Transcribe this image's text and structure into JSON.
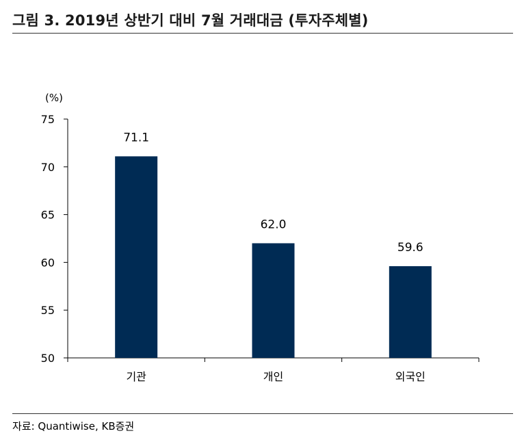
{
  "title": "그림 3. 2019년 상반기 대비 7월 거래대금 (투자주체별)",
  "unit_label": "(%)",
  "source": "자료: Quantiwise, KB증권",
  "colors": {
    "bar": "#002b54",
    "axis": "#000000"
  },
  "chart_data": {
    "type": "bar",
    "title": "",
    "xlabel": "",
    "ylabel": "(%)",
    "categories": [
      "기관",
      "개인",
      "외국인"
    ],
    "values": [
      71.1,
      62.0,
      59.6
    ],
    "value_labels": [
      "71.1",
      "62.0",
      "59.6"
    ],
    "ylim": [
      50,
      75
    ],
    "yticks": [
      50,
      55,
      60,
      65,
      70,
      75
    ],
    "grid": false,
    "legend": "none"
  }
}
